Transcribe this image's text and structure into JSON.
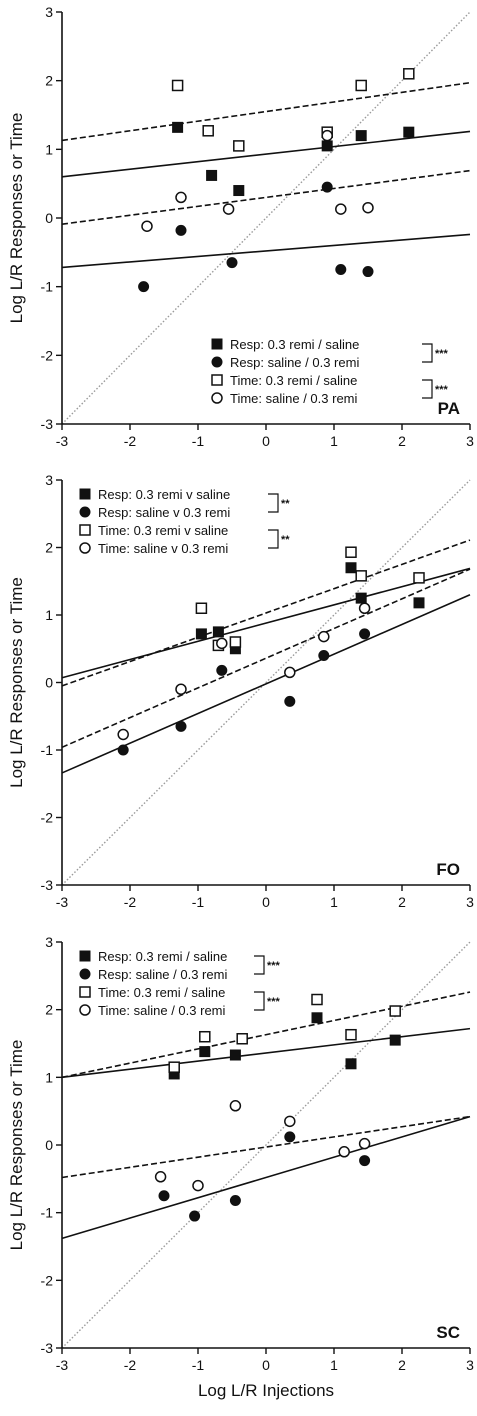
{
  "chart_data": [
    {
      "type": "scatter",
      "panel_label": "PA",
      "ylabel": "Log L/R Responses or Time",
      "xlabel": "",
      "xlim": [
        -3,
        3
      ],
      "ylim": [
        -3,
        3
      ],
      "xticks": [
        "-3",
        "-2",
        "-1",
        "0",
        "1",
        "2",
        "3"
      ],
      "yticks": [
        "-3",
        "-2",
        "-1",
        "0",
        "1",
        "2",
        "3"
      ],
      "legend_position": "bottom-right",
      "series": [
        {
          "name": "Resp: 0.3 remi / saline",
          "marker": "square-filled",
          "line": "solid",
          "points": [
            [
              -1.3,
              1.32
            ],
            [
              -0.8,
              0.62
            ],
            [
              -0.4,
              0.4
            ],
            [
              0.9,
              1.05
            ],
            [
              1.4,
              1.2
            ],
            [
              2.1,
              1.25
            ]
          ],
          "fit": {
            "slope": 0.11,
            "intercept": 0.93
          }
        },
        {
          "name": "Resp: saline / 0.3 remi",
          "marker": "circle-filled",
          "line": "solid",
          "points": [
            [
              -1.8,
              -1.0
            ],
            [
              -1.25,
              -0.18
            ],
            [
              -0.5,
              -0.65
            ],
            [
              0.9,
              0.45
            ],
            [
              1.1,
              -0.75
            ],
            [
              1.5,
              -0.78
            ]
          ],
          "fit": {
            "slope": 0.08,
            "intercept": -0.48
          }
        },
        {
          "name": "Time: 0.3 remi / saline",
          "marker": "square-open",
          "line": "dashed",
          "points": [
            [
              -1.3,
              1.93
            ],
            [
              -0.85,
              1.27
            ],
            [
              -0.4,
              1.05
            ],
            [
              0.9,
              1.25
            ],
            [
              1.4,
              1.93
            ],
            [
              2.1,
              2.1
            ]
          ],
          "fit": {
            "slope": 0.14,
            "intercept": 1.55
          }
        },
        {
          "name": "Time: saline / 0.3 remi",
          "marker": "circle-open",
          "line": "dashed",
          "points": [
            [
              -1.75,
              -0.12
            ],
            [
              -1.25,
              0.3
            ],
            [
              -0.55,
              0.13
            ],
            [
              0.9,
              1.2
            ],
            [
              1.1,
              0.13
            ],
            [
              1.5,
              0.15
            ]
          ],
          "fit": {
            "slope": 0.13,
            "intercept": 0.3
          }
        }
      ],
      "significance": [
        "***",
        "***"
      ],
      "identity_line": true
    },
    {
      "type": "scatter",
      "panel_label": "FO",
      "ylabel": "Log L/R Responses or Time",
      "xlabel": "",
      "xlim": [
        -3,
        3
      ],
      "ylim": [
        -3,
        3
      ],
      "xticks": [
        "-3",
        "-2",
        "-1",
        "0",
        "1",
        "2",
        "3"
      ],
      "yticks": [
        "-3",
        "-2",
        "-1",
        "0",
        "1",
        "2",
        "3"
      ],
      "legend_position": "top-left",
      "series": [
        {
          "name": "Resp: 0.3 remi v saline",
          "marker": "square-filled",
          "line": "solid",
          "points": [
            [
              -0.95,
              0.72
            ],
            [
              -0.7,
              0.75
            ],
            [
              -0.45,
              0.5
            ],
            [
              1.25,
              1.7
            ],
            [
              1.4,
              1.25
            ],
            [
              2.25,
              1.18
            ]
          ],
          "fit": {
            "slope": 0.27,
            "intercept": 0.88
          }
        },
        {
          "name": "Resp: saline v 0.3 remi",
          "marker": "circle-filled",
          "line": "solid",
          "points": [
            [
              -2.1,
              -1.0
            ],
            [
              -1.25,
              -0.65
            ],
            [
              -0.65,
              0.18
            ],
            [
              0.35,
              -0.28
            ],
            [
              0.85,
              0.4
            ],
            [
              1.45,
              0.72
            ]
          ],
          "fit": {
            "slope": 0.44,
            "intercept": -0.02
          }
        },
        {
          "name": "Time: 0.3 remi v saline",
          "marker": "square-open",
          "line": "dashed",
          "points": [
            [
              -0.95,
              1.1
            ],
            [
              -0.7,
              0.55
            ],
            [
              -0.45,
              0.6
            ],
            [
              1.25,
              1.93
            ],
            [
              1.4,
              1.58
            ],
            [
              2.25,
              1.55
            ]
          ],
          "fit": {
            "slope": 0.36,
            "intercept": 1.03
          }
        },
        {
          "name": "Time: saline v 0.3 remi",
          "marker": "circle-open",
          "line": "dashed",
          "points": [
            [
              -2.1,
              -0.77
            ],
            [
              -1.25,
              -0.1
            ],
            [
              -0.65,
              0.58
            ],
            [
              0.35,
              0.15
            ],
            [
              0.85,
              0.68
            ],
            [
              1.45,
              1.1
            ]
          ],
          "fit": {
            "slope": 0.44,
            "intercept": 0.36
          }
        }
      ],
      "significance": [
        "**",
        "**"
      ],
      "identity_line": true
    },
    {
      "type": "scatter",
      "panel_label": "SC",
      "ylabel": "Log L/R Responses or Time",
      "xlabel": "Log L/R Injections",
      "xlim": [
        -3,
        3
      ],
      "ylim": [
        -3,
        3
      ],
      "xticks": [
        "-3",
        "-2",
        "-1",
        "0",
        "1",
        "2",
        "3"
      ],
      "yticks": [
        "-3",
        "-2",
        "-1",
        "0",
        "1",
        "2",
        "3"
      ],
      "legend_position": "top-left",
      "series": [
        {
          "name": "Resp: 0.3 remi / saline",
          "marker": "square-filled",
          "line": "solid",
          "points": [
            [
              -1.35,
              1.05
            ],
            [
              -0.9,
              1.38
            ],
            [
              -0.45,
              1.33
            ],
            [
              0.75,
              1.88
            ],
            [
              1.25,
              1.2
            ],
            [
              1.9,
              1.55
            ]
          ],
          "fit": {
            "slope": 0.12,
            "intercept": 1.36
          }
        },
        {
          "name": "Resp: saline / 0.3 remi",
          "marker": "circle-filled",
          "line": "solid",
          "points": [
            [
              -1.5,
              -0.75
            ],
            [
              -1.05,
              -1.05
            ],
            [
              -0.45,
              -0.82
            ],
            [
              0.35,
              0.12
            ],
            [
              1.15,
              -0.1
            ],
            [
              1.45,
              -0.23
            ]
          ],
          "fit": {
            "slope": 0.3,
            "intercept": -0.48
          }
        },
        {
          "name": "Time: 0.3 remi / saline",
          "marker": "square-open",
          "line": "dashed",
          "points": [
            [
              -1.35,
              1.15
            ],
            [
              -0.9,
              1.6
            ],
            [
              -0.35,
              1.57
            ],
            [
              0.75,
              2.15
            ],
            [
              1.25,
              1.63
            ],
            [
              1.9,
              1.98
            ]
          ],
          "fit": {
            "slope": 0.21,
            "intercept": 1.63
          }
        },
        {
          "name": "Time: saline / 0.3 remi",
          "marker": "circle-open",
          "line": "dashed",
          "points": [
            [
              -1.55,
              -0.47
            ],
            [
              -1.0,
              -0.6
            ],
            [
              -0.45,
              0.58
            ],
            [
              0.35,
              0.35
            ],
            [
              1.15,
              -0.1
            ],
            [
              1.45,
              0.02
            ]
          ],
          "fit": {
            "slope": 0.15,
            "intercept": -0.03
          }
        }
      ],
      "significance": [
        "***",
        "***"
      ],
      "identity_line": true
    }
  ]
}
